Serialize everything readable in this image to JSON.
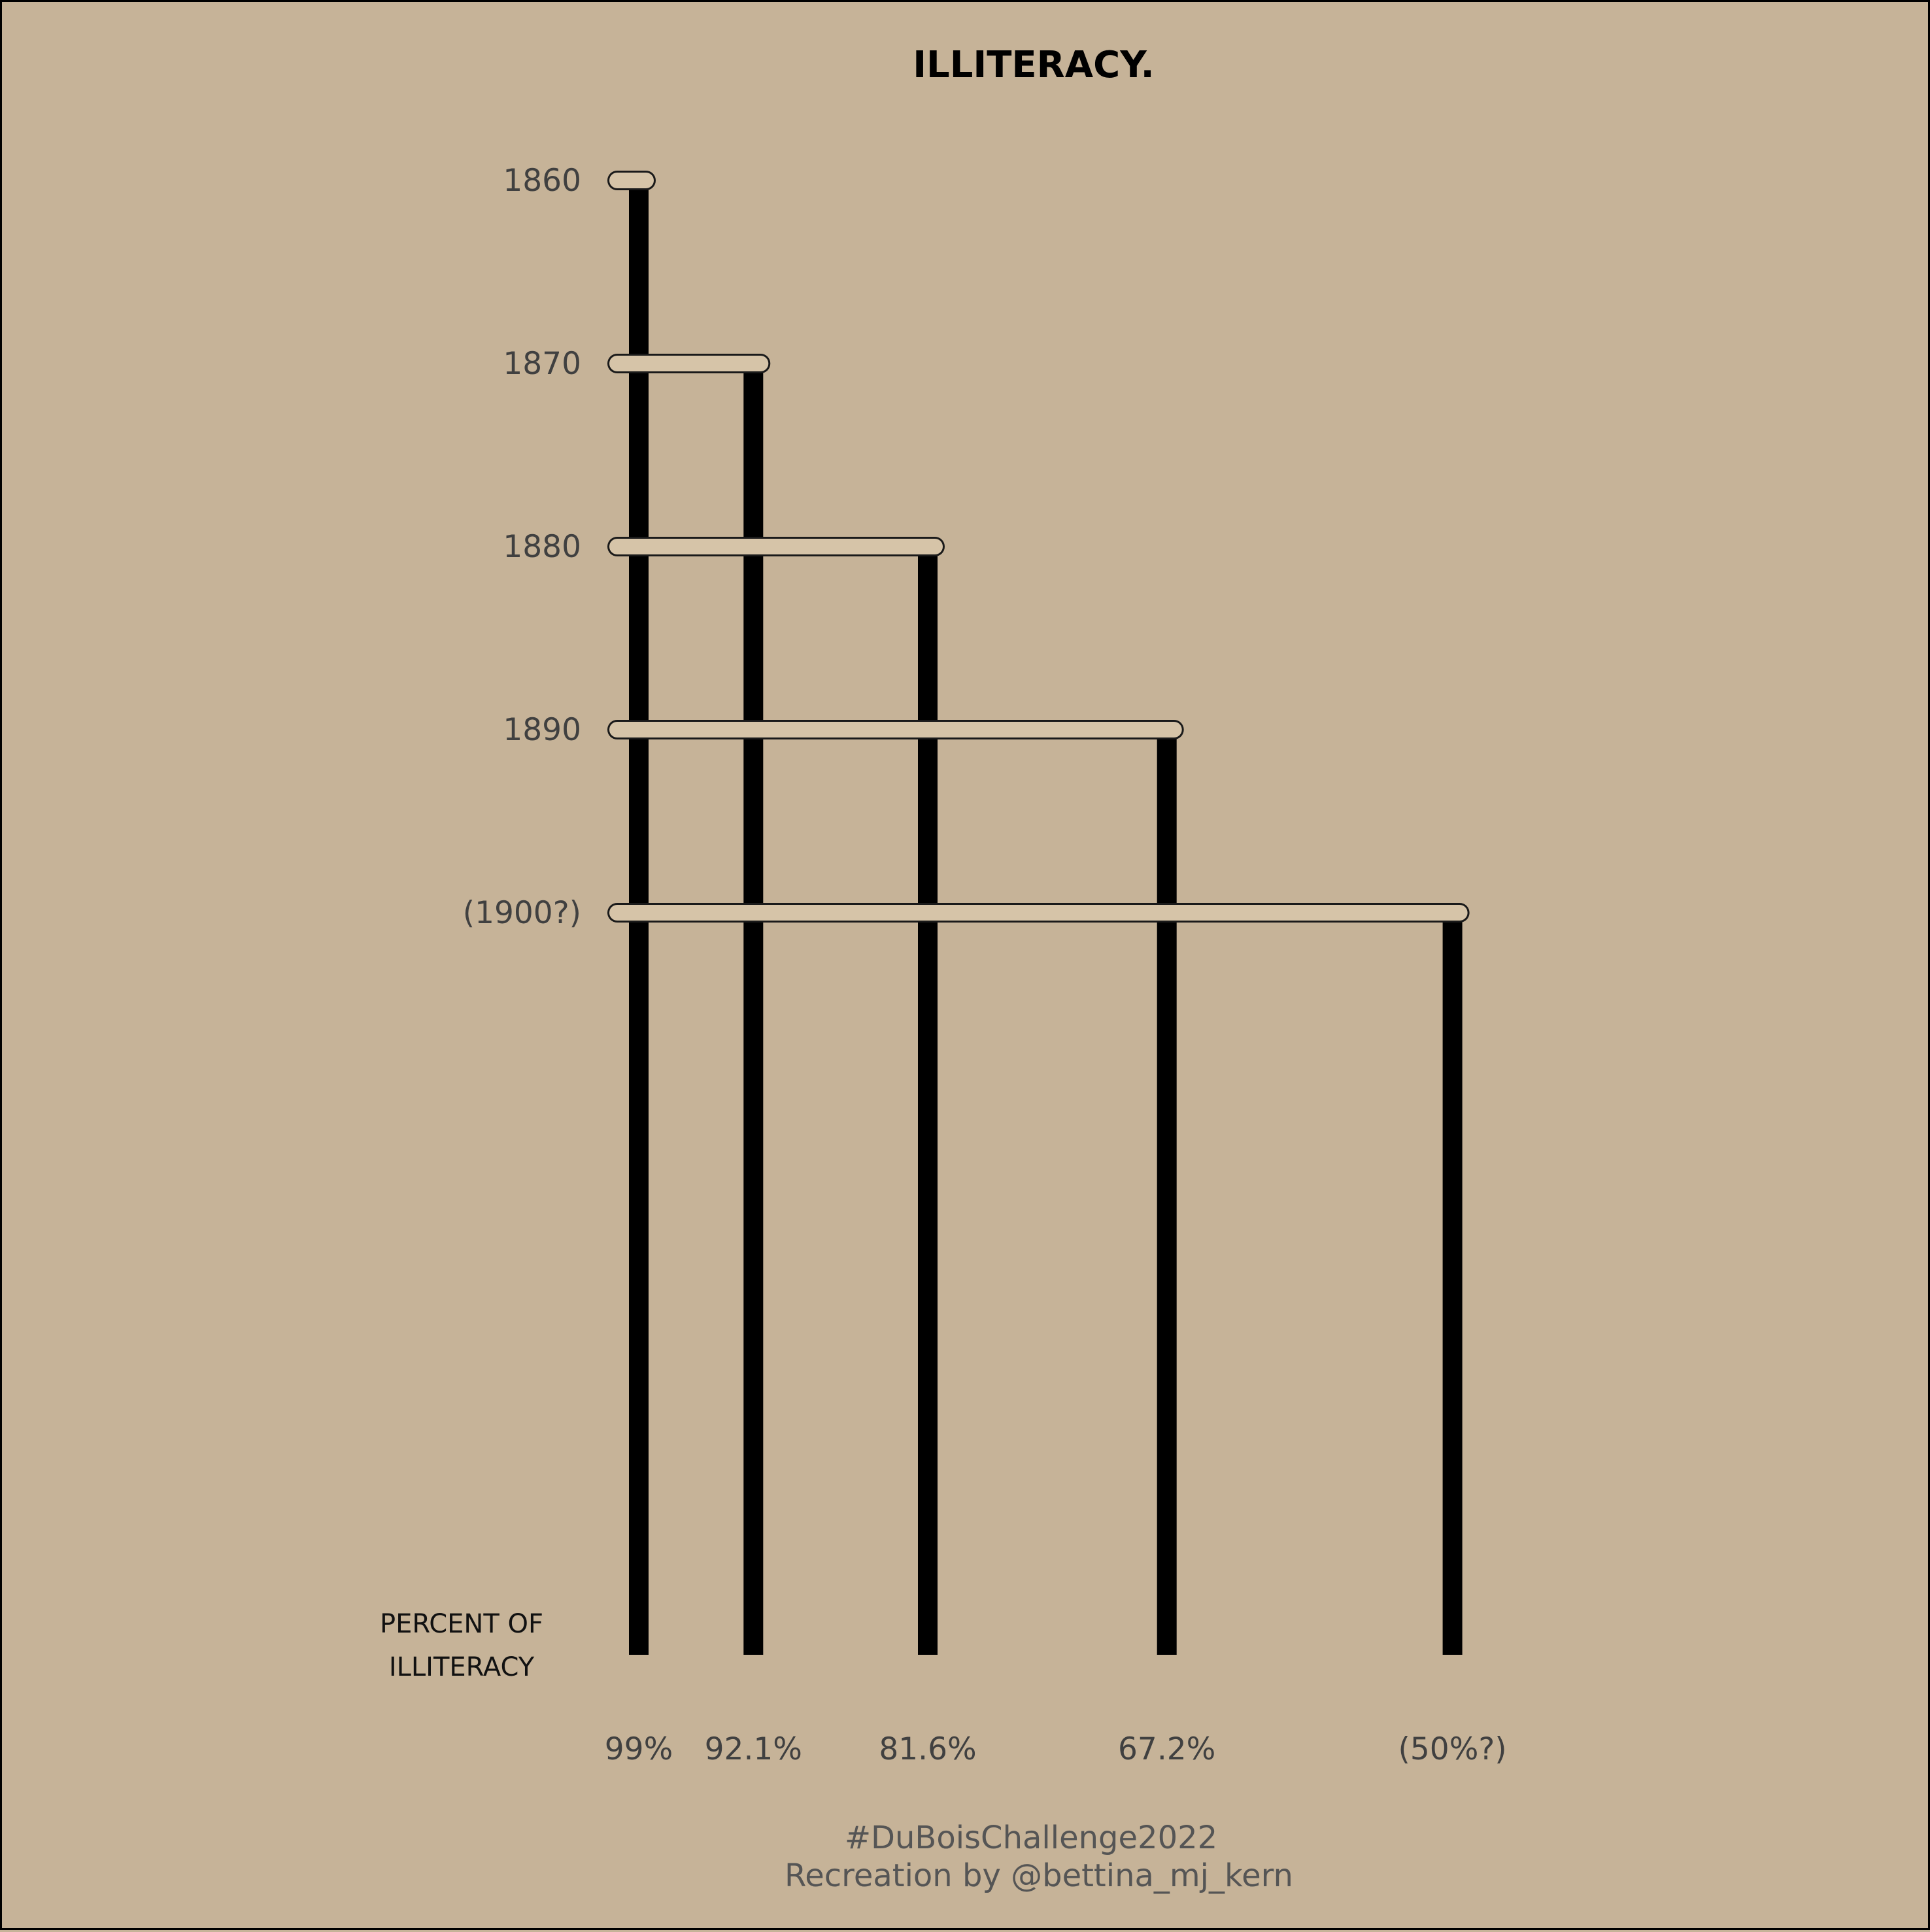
{
  "chart_data": {
    "type": "bar",
    "title": "ILLITERACY.",
    "x_axis_title_lines": [
      "PERCENT OF",
      "ILLITERACY"
    ],
    "caption_lines": [
      "#DuBoisChallenge2022",
      "Recreation by @bettina_mj_kern"
    ],
    "categories": [
      "1860",
      "1870",
      "1880",
      "1890",
      "(1900?)"
    ],
    "values": [
      99,
      92.1,
      81.6,
      67.2,
      50
    ],
    "value_labels": [
      "99%",
      "92.1%",
      "81.6%",
      "67.2%",
      "(50%?)"
    ],
    "colors": {
      "background": "#c6b398",
      "bars": "#000000",
      "connectors": "#d6c4a8",
      "text": "#404040",
      "caption": "#555555"
    }
  }
}
